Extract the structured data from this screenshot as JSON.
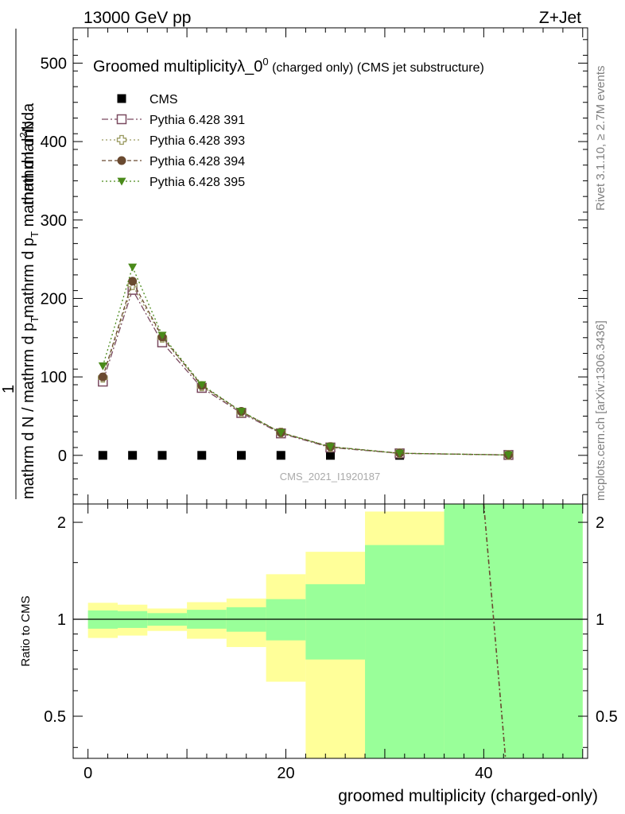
{
  "header": {
    "left": "13000 GeV pp",
    "right": "Z+Jet"
  },
  "side_labels": {
    "rivet": "Rivet 3.1.10, ≥ 2.7M events",
    "mcplots": "mcplots.cern.ch [arXiv:1306.3436]"
  },
  "chart_data": [
    {
      "type": "scatter",
      "panel": "main",
      "title_main": "Groomed multiplicityλ_0",
      "title_sup": "0",
      "title_rest": " (charged only) (CMS jet substructure)",
      "ylabel_numer_a": "mathrm d",
      "ylabel_numer_sup": "2",
      "ylabel_numer_b": "N",
      "ylabel_mid": "mathrm d p",
      "ylabel_mid_sub": "T",
      "ylabel_mid_b": " mathrm d lambda",
      "ylabel_one": "1",
      "ylabel_denom_a": "mathrm d N / mathrm d p",
      "ylabel_denom_sub": "T",
      "watermark": "CMS_2021_I1920187",
      "xlim": [
        -1.5,
        50.5
      ],
      "ylim": [
        -62,
        545
      ],
      "yticks": [
        0,
        100,
        200,
        300,
        400,
        500
      ],
      "legend_position": "top-left",
      "series": [
        {
          "name": "CMS",
          "marker": "square-filled",
          "color": "#000000",
          "x": [
            1.5,
            4.5,
            7.5,
            11.5,
            15.5,
            19.5,
            24.5,
            31.5,
            42.5
          ],
          "y": [
            0,
            0,
            0,
            0,
            0,
            0,
            0,
            0,
            0
          ]
        },
        {
          "name": "Pythia 6.428 391",
          "marker": "square-open",
          "color": "#7a4a60",
          "dash": "8,3,2,3",
          "x": [
            1.5,
            4.5,
            7.5,
            11.5,
            15.5,
            19.5,
            24.5,
            31.5,
            42.5
          ],
          "y": [
            94,
            211,
            144,
            86,
            54,
            28,
            10,
            2.5,
            0.5
          ]
        },
        {
          "name": "Pythia 6.428 393",
          "marker": "cross-open",
          "color": "#9a9a60",
          "dash": "2,3",
          "x": [
            1.5,
            4.5,
            7.5,
            11.5,
            15.5,
            19.5,
            24.5,
            31.5,
            42.5
          ],
          "y": [
            99,
            217,
            150,
            88,
            55,
            29,
            10.5,
            2.6,
            0.5
          ]
        },
        {
          "name": "Pythia 6.428 394",
          "marker": "circle-filled",
          "color": "#6a4a30",
          "dash": "5,3",
          "x": [
            1.5,
            4.5,
            7.5,
            11.5,
            15.5,
            19.5,
            24.5,
            31.5,
            42.5
          ],
          "y": [
            100,
            222,
            151,
            89,
            56,
            29,
            11,
            2.7,
            0.5
          ]
        },
        {
          "name": "Pythia 6.428 395",
          "marker": "triangle-down-filled",
          "color": "#4a8a1a",
          "dash": "2,3",
          "x": [
            1.5,
            4.5,
            7.5,
            11.5,
            15.5,
            19.5,
            24.5,
            31.5,
            42.5
          ],
          "y": [
            114,
            240,
            153,
            90,
            56,
            29,
            11,
            2.7,
            0.5
          ]
        }
      ]
    },
    {
      "type": "area",
      "panel": "ratio",
      "ylabel": "Ratio to CMS",
      "xlabel": "groomed multiplicity (charged-only)",
      "xlim": [
        -1.5,
        50.5
      ],
      "ylim": [
        0.37,
        2.28
      ],
      "xticks": [
        0,
        20,
        40
      ],
      "yticks": [
        0.5,
        1,
        2
      ],
      "bins": [
        {
          "x0": 0,
          "x1": 3,
          "yellow": [
            0.875,
            1.125
          ],
          "green": [
            0.935,
            1.065
          ]
        },
        {
          "x0": 3,
          "x1": 6,
          "yellow": [
            0.89,
            1.11
          ],
          "green": [
            0.94,
            1.06
          ]
        },
        {
          "x0": 6,
          "x1": 10,
          "yellow": [
            0.92,
            1.08
          ],
          "green": [
            0.955,
            1.045
          ]
        },
        {
          "x0": 10,
          "x1": 14,
          "yellow": [
            0.87,
            1.13
          ],
          "green": [
            0.935,
            1.07
          ]
        },
        {
          "x0": 14,
          "x1": 18,
          "yellow": [
            0.82,
            1.16
          ],
          "green": [
            0.915,
            1.09
          ]
        },
        {
          "x0": 18,
          "x1": 22,
          "yellow": [
            0.64,
            1.38
          ],
          "green": [
            0.86,
            1.155
          ]
        },
        {
          "x0": 22,
          "x1": 28,
          "yellow": [
            0.37,
            1.62
          ],
          "green": [
            0.75,
            1.285
          ]
        },
        {
          "x0": 28,
          "x1": 36,
          "yellow": [
            0.37,
            2.16
          ],
          "green": [
            0.37,
            1.7
          ]
        },
        {
          "x0": 36,
          "x1": 50,
          "yellow": [
            0.37,
            2.28
          ],
          "green": [
            0.37,
            2.28
          ]
        }
      ],
      "curve": {
        "color": "#6a4a30",
        "x": [
          40.0,
          42.2
        ],
        "y": [
          2.28,
          0.37
        ]
      }
    }
  ]
}
